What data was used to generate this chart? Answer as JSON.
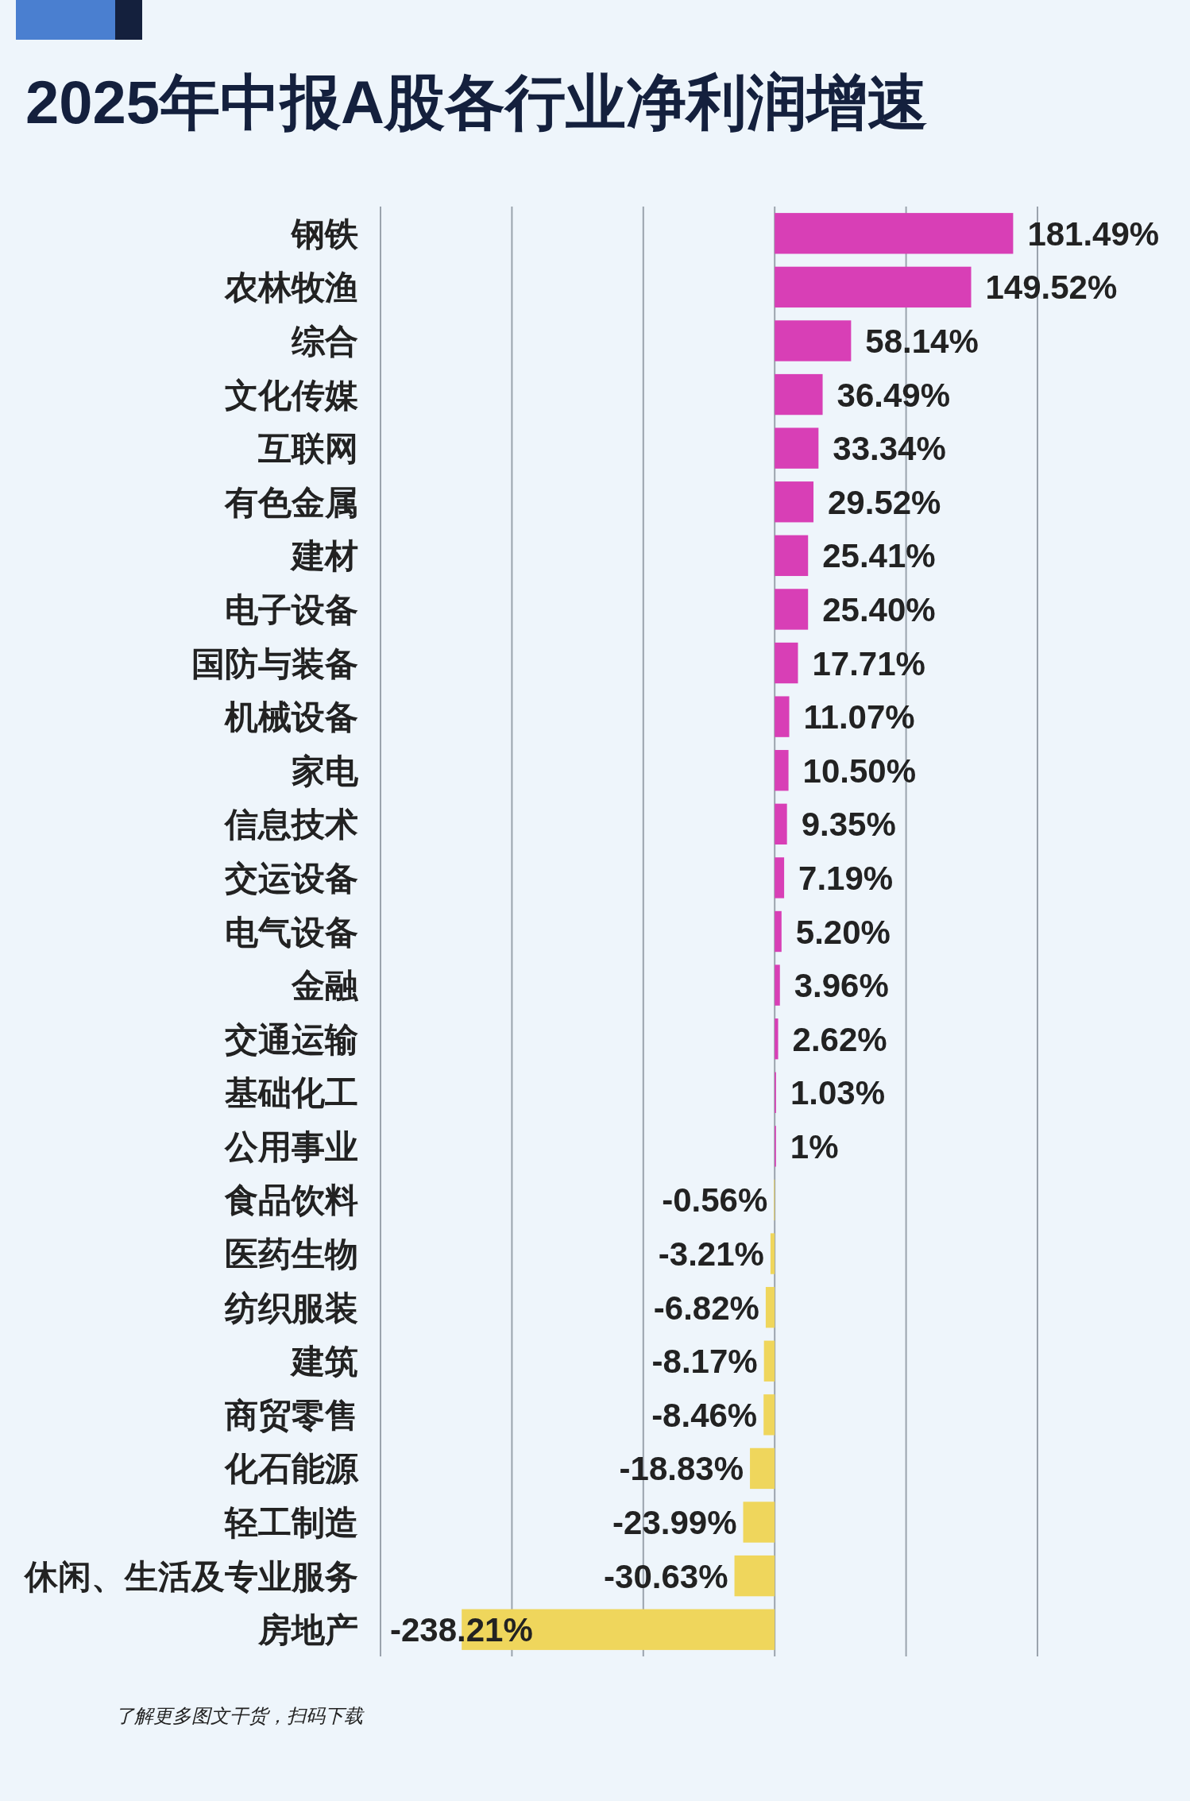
{
  "chart_data": {
    "type": "bar",
    "orientation": "horizontal",
    "title": "2025年中报A股各行业净利润增速",
    "categories": [
      "钢铁",
      "农林牧渔",
      "综合",
      "文化传媒",
      "互联网",
      "有色金属",
      "建材",
      "电子设备",
      "国防与装备",
      "机械设备",
      "家电",
      "信息技术",
      "交运设备",
      "电气设备",
      "金融",
      "交通运输",
      "基础化工",
      "公用事业",
      "食品饮料",
      "医药生物",
      "纺织服装",
      "建筑",
      "商贸零售",
      "化石能源",
      "轻工制造",
      "休闲、生活及专业服务",
      "房地产"
    ],
    "values": [
      181.49,
      149.52,
      58.14,
      36.49,
      33.34,
      29.52,
      25.41,
      25.4,
      17.71,
      11.07,
      10.5,
      9.35,
      7.19,
      5.2,
      3.96,
      2.62,
      1.03,
      1,
      -0.56,
      -3.21,
      -6.82,
      -8.17,
      -8.46,
      -18.83,
      -23.99,
      -30.63,
      -238.21
    ],
    "value_labels": [
      "181.49%",
      "149.52%",
      "58.14%",
      "36.49%",
      "33.34%",
      "29.52%",
      "25.41%",
      "25.40%",
      "17.71%",
      "11.07%",
      "10.50%",
      "9.35%",
      "7.19%",
      "5.20%",
      "3.96%",
      "2.62%",
      "1.03%",
      "1%",
      "-0.56%",
      "-3.21%",
      "-6.82%",
      "-8.17%",
      "-8.46%",
      "-18.83%",
      "-23.99%",
      "-30.63%",
      "-238.21%"
    ],
    "colors": [
      "#d83fb6",
      "#d83fb6",
      "#d83fb6",
      "#d83fb6",
      "#d83fb6",
      "#d83fb6",
      "#d83fb6",
      "#d83fb6",
      "#d83fb6",
      "#d83fb6",
      "#d83fb6",
      "#d83fb6",
      "#d83fb6",
      "#d83fb6",
      "#d83fb6",
      "#d83fb6",
      "#d83fb6",
      "#d83fb6",
      "#efd65c",
      "#efd65c",
      "#efd65c",
      "#efd65c",
      "#efd65c",
      "#efd65c",
      "#efd65c",
      "#efd65c",
      "#efd65c"
    ],
    "xlim": [
      -300,
      200
    ],
    "xticks": [
      {
        "value": -300,
        "label": null
      },
      {
        "value": -200,
        "label": null
      },
      {
        "value": -100,
        "label": null
      },
      {
        "value": 0,
        "label": null
      },
      {
        "value": 100,
        "label": null
      },
      {
        "value": 200,
        "label": null
      }
    ],
    "grid": "x",
    "tick_labels": "y",
    "annotations": [
      "了解更多图文干货，扫码下载"
    ]
  }
}
